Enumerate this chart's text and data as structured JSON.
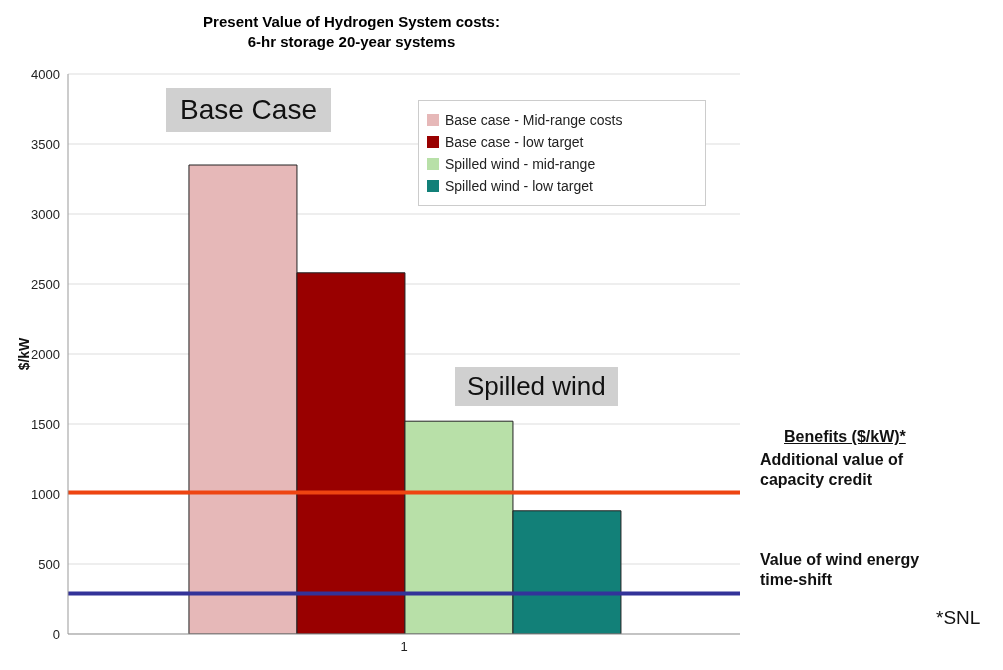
{
  "chart_data": {
    "type": "bar",
    "title": "Present Value of Hydrogen System costs:\n6-hr storage 20-year systems",
    "ylabel": "$/kW",
    "categories": [
      "1"
    ],
    "series": [
      {
        "name": "Base case - Mid-range costs",
        "color": "#e6b8b8",
        "values": [
          3350
        ]
      },
      {
        "name": "Base case - low target",
        "color": "#990000",
        "values": [
          2580
        ]
      },
      {
        "name": "Spilled wind - mid-range",
        "color": "#b8e0a8",
        "values": [
          1520
        ]
      },
      {
        "name": "Spilled wind - low target",
        "color": "#128078",
        "values": [
          880
        ]
      }
    ],
    "ylim": [
      0,
      4000
    ],
    "yticks": [
      0,
      500,
      1000,
      1500,
      2000,
      2500,
      3000,
      3500,
      4000
    ],
    "grid": "y",
    "legend": "top right",
    "ref_lines": [
      {
        "axis": "y",
        "value": 1010,
        "label": "Additional value of capacity credit",
        "color": "#ee4411"
      },
      {
        "axis": "y",
        "value": 290,
        "label": "Value of wind energy time-shift",
        "color": "#333399"
      }
    ],
    "annotations": [
      "Base Case",
      "Spilled wind",
      "Benefits ($/kW)*",
      "*SNL"
    ]
  }
}
